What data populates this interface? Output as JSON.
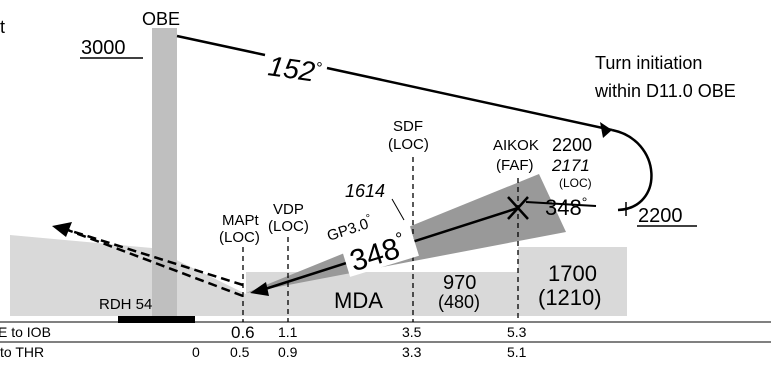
{
  "station": "OBE",
  "left_cut_text": "t",
  "altitude_3000": "3000",
  "course_outbound": "152",
  "degree_symbol": "°",
  "turn_note": {
    "line1": "Turn initiation",
    "line2": "within D11.0 OBE"
  },
  "sdf": {
    "name": "SDF",
    "type": "(LOC)"
  },
  "aikok": {
    "name": "AIKOK",
    "type": "(FAF)",
    "altitude": "2200",
    "alt_italic": "2171",
    "alt_note": "(LOC)"
  },
  "inbound_turn_course": "348",
  "procedure_turn_altitude": "2200",
  "alt_1614": "1614",
  "glidepath": "GP3.0",
  "glidepath_degree": "°",
  "final_course": "348",
  "mapt": {
    "name": "MAPt",
    "type": "(LOC)"
  },
  "vdp": {
    "name": "VDP",
    "type": "(LOC)"
  },
  "rdh": "RDH 54",
  "mda_label": "MDA",
  "mda_value": {
    "alt": "970",
    "height": "(480)"
  },
  "faf_minimum": {
    "alt": "1700",
    "height": "(1210)"
  },
  "dist_rows": [
    {
      "label": "E to IOB",
      "values": [
        "0.6",
        "1.1",
        "3.5",
        "5.3"
      ]
    },
    {
      "label": "to THR",
      "values": [
        "0",
        "0.5",
        "0.9",
        "3.3",
        "5.1"
      ]
    }
  ],
  "colors": {
    "terrain": "#d9d9d9",
    "wedge": "#999999",
    "tower": "#bfbfbf",
    "line": "#000000"
  }
}
